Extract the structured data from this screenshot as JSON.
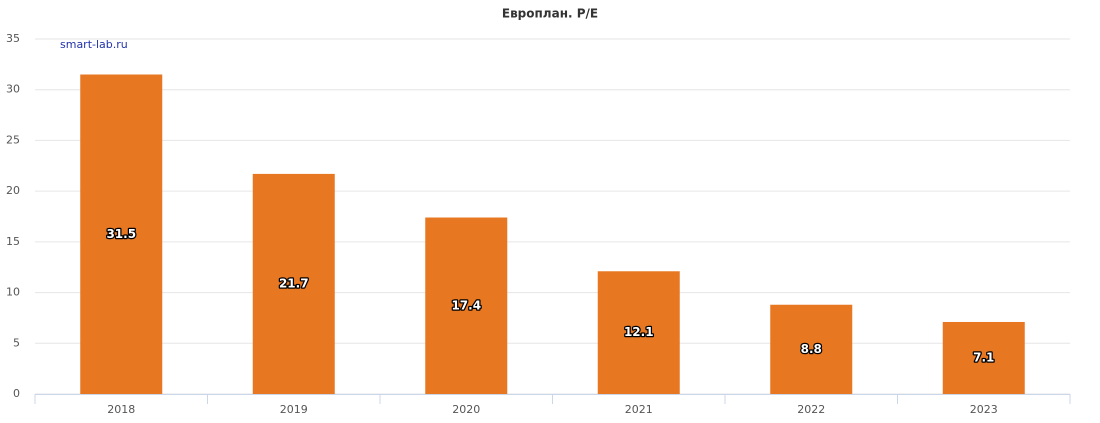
{
  "chart_data": {
    "type": "bar",
    "title": "Европлан. P/E",
    "watermark": "smart-lab.ru",
    "categories": [
      "2018",
      "2019",
      "2020",
      "2021",
      "2022",
      "2023"
    ],
    "values": [
      31.5,
      21.7,
      17.4,
      12.1,
      8.8,
      7.1
    ],
    "color": "#e87722",
    "ylim": [
      0,
      35
    ],
    "yticks": [
      0,
      5,
      10,
      15,
      20,
      25,
      30,
      35
    ],
    "grid": true
  }
}
